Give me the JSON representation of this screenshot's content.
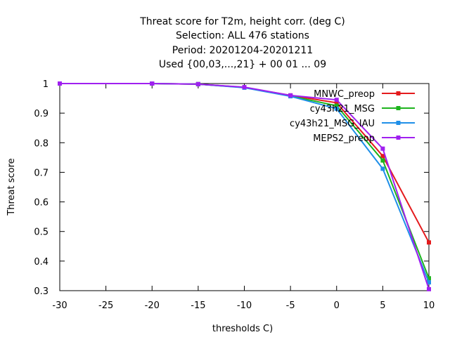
{
  "chart_data": {
    "type": "line",
    "title": [
      "Threat score  for T2m, height corr. (deg C)",
      "Selection: ALL    476 stations",
      "Period: 20201204-20201211",
      "Used {00,03,...,21} + 00 01 ... 09"
    ],
    "xlabel": "thresholds C)",
    "ylabel": "Threat score",
    "xlim": [
      -30,
      10
    ],
    "ylim": [
      0.3,
      1.0
    ],
    "xticks": [
      -30,
      -25,
      -20,
      -15,
      -10,
      -5,
      0,
      5,
      10
    ],
    "yticks": [
      0.3,
      0.4,
      0.5,
      0.6,
      0.7,
      0.8,
      0.9,
      1.0
    ],
    "xtick_labels": [
      "-30",
      "-25",
      "-20",
      "-15",
      "-10",
      "-5",
      "0",
      "5",
      "10"
    ],
    "ytick_labels": [
      "0.3",
      "0.4",
      "0.5",
      "0.6",
      "0.7",
      "0.8",
      "0.9",
      "1"
    ],
    "grid": false,
    "legend_position": "top-right",
    "x": [
      -30,
      -20,
      -15,
      -10,
      -5,
      0,
      5,
      10
    ],
    "series": [
      {
        "name": "MNWC_preop",
        "color": "#e41a1c",
        "values": [
          1.0,
          1.0,
          0.998,
          0.987,
          0.96,
          0.935,
          0.755,
          0.463
        ]
      },
      {
        "name": "cy43h21_MSG",
        "color": "#1db41d",
        "values": [
          1.0,
          1.0,
          0.998,
          0.987,
          0.958,
          0.925,
          0.74,
          0.342
        ]
      },
      {
        "name": "cy43h21_MSG_IAU",
        "color": "#1f8fe8",
        "values": [
          1.0,
          1.0,
          0.998,
          0.986,
          0.957,
          0.915,
          0.712,
          0.328
        ]
      },
      {
        "name": "MEPS2_preop",
        "color": "#a020f0",
        "values": [
          1.0,
          1.0,
          0.998,
          0.988,
          0.96,
          0.945,
          0.78,
          0.305
        ]
      }
    ]
  }
}
